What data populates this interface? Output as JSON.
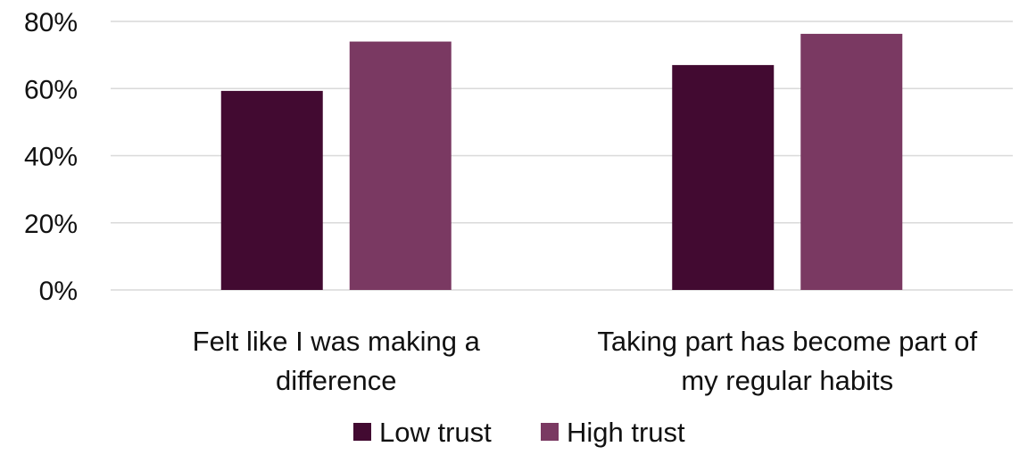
{
  "chart_data": {
    "type": "bar",
    "title": "",
    "xlabel": "",
    "ylabel": "",
    "ylim": [
      0,
      80
    ],
    "yticks": [
      "0%",
      "20%",
      "40%",
      "60%",
      "80%"
    ],
    "ytick_values": [
      0,
      20,
      40,
      60,
      80
    ],
    "grid": true,
    "legend_position": "bottom",
    "categories": [
      [
        "Felt like I was making a",
        "difference"
      ],
      [
        "Taking part has become part of",
        "my regular habits"
      ]
    ],
    "series": [
      {
        "name": "Low trust",
        "color": "#420a31",
        "values": [
          59.3,
          67
        ]
      },
      {
        "name": "High trust",
        "color": "#7a3962",
        "values": [
          74,
          76.3
        ]
      }
    ]
  }
}
